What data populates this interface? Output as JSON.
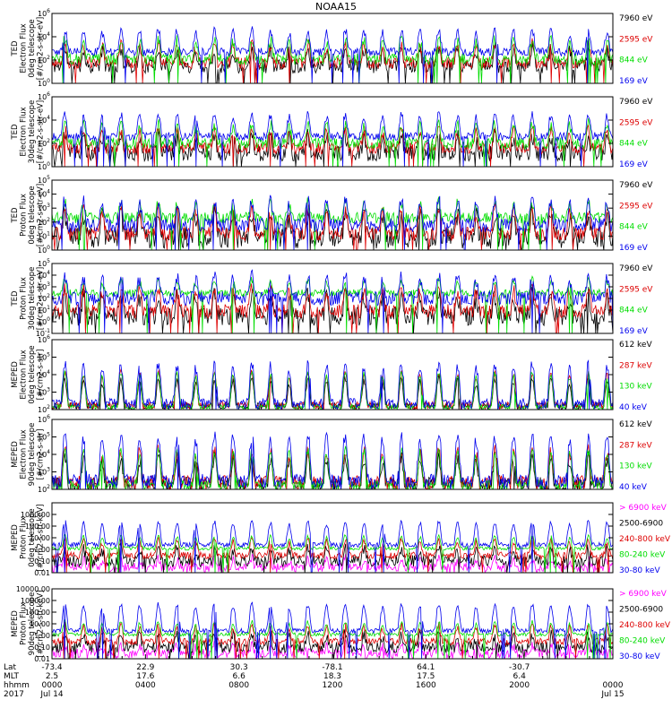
{
  "title": "NOAA15",
  "colors": {
    "black": "#000000",
    "red": "#dd0000",
    "green": "#00dd00",
    "blue": "#0000ee",
    "magenta": "#ff00ff"
  },
  "chart_data": [
    {
      "type": "line",
      "ylabel": [
        "TED",
        "Electron Flux",
        "0deg telescope",
        "[#/cm2-s-str-eV]"
      ],
      "yscale": "log",
      "ylim": [
        1,
        1000000
      ],
      "yticks": [
        {
          "v": 1,
          "label": "10^0"
        },
        {
          "v": 100,
          "label": "10^2"
        },
        {
          "v": 10000,
          "label": "10^4"
        },
        {
          "v": 1000000,
          "label": "10^6"
        }
      ],
      "series": [
        {
          "name": "7960 eV",
          "color": "black",
          "base": 30,
          "noise": 0.6,
          "peak": 25,
          "floor": 1
        },
        {
          "name": "2595 eV",
          "color": "red",
          "base": 60,
          "noise": 0.5,
          "peak": 30,
          "floor": 1
        },
        {
          "name": "844 eV",
          "color": "green",
          "base": 120,
          "noise": 0.5,
          "peak": 40,
          "floor": 1
        },
        {
          "name": "169 eV",
          "color": "blue",
          "base": 500,
          "noise": 0.35,
          "peak": 60,
          "floor": 1
        }
      ]
    },
    {
      "type": "line",
      "ylabel": [
        "TED",
        "Electron Flux",
        "30deg telescope",
        "[#/cm2-s-str-eV]"
      ],
      "yscale": "log",
      "ylim": [
        1,
        1000000
      ],
      "yticks": [
        {
          "v": 1,
          "label": "10^0"
        },
        {
          "v": 100,
          "label": "10^2"
        },
        {
          "v": 10000,
          "label": "10^4"
        },
        {
          "v": 1000000,
          "label": "10^6"
        }
      ],
      "series": [
        {
          "name": "7960 eV",
          "color": "black",
          "base": 15,
          "noise": 0.7,
          "peak": 25,
          "floor": 1
        },
        {
          "name": "2595 eV",
          "color": "red",
          "base": 40,
          "noise": 0.5,
          "peak": 30,
          "floor": 1
        },
        {
          "name": "844 eV",
          "color": "green",
          "base": 100,
          "noise": 0.5,
          "peak": 40,
          "floor": 1
        },
        {
          "name": "169 eV",
          "color": "blue",
          "base": 400,
          "noise": 0.35,
          "peak": 60,
          "floor": 1
        }
      ]
    },
    {
      "type": "line",
      "ylabel": [
        "TED",
        "Proton Flux",
        "0deg telescope",
        "[#/cm2-s-str-eV]"
      ],
      "yscale": "log",
      "ylim": [
        1,
        100000
      ],
      "yticks": [
        {
          "v": 1,
          "label": "10^0"
        },
        {
          "v": 10,
          "label": "10^1"
        },
        {
          "v": 100,
          "label": "10^2"
        },
        {
          "v": 1000,
          "label": "10^3"
        },
        {
          "v": 10000,
          "label": "10^4"
        },
        {
          "v": 100000,
          "label": "10^5"
        }
      ],
      "series": [
        {
          "name": "7960 eV",
          "color": "black",
          "base": 8,
          "noise": 0.8,
          "peak": 40,
          "floor": 1
        },
        {
          "name": "2595 eV",
          "color": "red",
          "base": 15,
          "noise": 0.5,
          "peak": 50,
          "floor": 1
        },
        {
          "name": "844 eV",
          "color": "green",
          "base": 200,
          "noise": 0.4,
          "peak": 10,
          "floor": 1
        },
        {
          "name": "169 eV",
          "color": "blue",
          "base": 60,
          "noise": 0.5,
          "peak": 50,
          "floor": 1
        }
      ]
    },
    {
      "type": "line",
      "ylabel": [
        "TED",
        "Proton Flux",
        "30deg telescope",
        "[#/cm2-s-str-eV]"
      ],
      "yscale": "log",
      "ylim": [
        0.1,
        100000
      ],
      "yticks": [
        {
          "v": 0.1,
          "label": "10^-1"
        },
        {
          "v": 1,
          "label": "10^0"
        },
        {
          "v": 10,
          "label": "10^1"
        },
        {
          "v": 100,
          "label": "10^2"
        },
        {
          "v": 1000,
          "label": "10^3"
        },
        {
          "v": 10000,
          "label": "10^4"
        },
        {
          "v": 100000,
          "label": "10^5"
        }
      ],
      "series": [
        {
          "name": "7960 eV",
          "color": "black",
          "base": 3,
          "noise": 0.8,
          "peak": 50,
          "floor": 0.1
        },
        {
          "name": "2595 eV",
          "color": "red",
          "base": 8,
          "noise": 0.6,
          "peak": 60,
          "floor": 0.1
        },
        {
          "name": "844 eV",
          "color": "green",
          "base": 300,
          "noise": 0.3,
          "peak": 10,
          "floor": 0.1
        },
        {
          "name": "169 eV",
          "color": "blue",
          "base": 100,
          "noise": 0.6,
          "peak": 60,
          "floor": 0.1
        }
      ]
    },
    {
      "type": "line",
      "ylabel": [
        "MEPED",
        "Electron Flux",
        "0deg telescope",
        "[#/cm2-s-str]"
      ],
      "yscale": "log",
      "ylim": [
        100,
        1000000
      ],
      "yticks": [
        {
          "v": 100,
          "label": "10^2"
        },
        {
          "v": 1000,
          "label": "10^3"
        },
        {
          "v": 10000,
          "label": "10^4"
        },
        {
          "v": 100000,
          "label": "10^5"
        },
        {
          "v": 1000000,
          "label": "10^6"
        }
      ],
      "series": [
        {
          "name": "612 keV",
          "color": "black",
          "base": 160,
          "noise": 0.2,
          "peak": 30,
          "floor": 100
        },
        {
          "name": "287 keV",
          "color": "red",
          "base": 180,
          "noise": 0.2,
          "peak": 60,
          "floor": 100
        },
        {
          "name": "130 keV",
          "color": "green",
          "base": 140,
          "noise": 0.15,
          "peak": 80,
          "floor": 100
        },
        {
          "name": "40 keV",
          "color": "blue",
          "base": 220,
          "noise": 0.3,
          "peak": 150,
          "floor": 100
        }
      ]
    },
    {
      "type": "line",
      "ylabel": [
        "MEPED",
        "Electron Flux",
        "90deg telescope",
        "[#/cm2-s-str]"
      ],
      "yscale": "log",
      "ylim": [
        100,
        1000000
      ],
      "yticks": [
        {
          "v": 100,
          "label": "10^2"
        },
        {
          "v": 1000,
          "label": "10^3"
        },
        {
          "v": 10000,
          "label": "10^4"
        },
        {
          "v": 100000,
          "label": "10^5"
        },
        {
          "v": 1000000,
          "label": "10^6"
        }
      ],
      "series": [
        {
          "name": "612 keV",
          "color": "black",
          "base": 200,
          "noise": 0.4,
          "peak": 30,
          "floor": 100
        },
        {
          "name": "287 keV",
          "color": "red",
          "base": 250,
          "noise": 0.4,
          "peak": 60,
          "floor": 100
        },
        {
          "name": "130 keV",
          "color": "green",
          "base": 180,
          "noise": 0.3,
          "peak": 80,
          "floor": 100
        },
        {
          "name": "40 keV",
          "color": "blue",
          "base": 300,
          "noise": 0.4,
          "peak": 300,
          "floor": 100
        }
      ]
    },
    {
      "type": "line",
      "ylabel": [
        "MEPED",
        "Proton Flux",
        "0deg telescope",
        "[#/cm2-s-str-keV]"
      ],
      "yscale": "log",
      "ylim": [
        0.01,
        10000
      ],
      "yticks": [
        {
          "v": 0.01,
          "label": "0.01"
        },
        {
          "v": 0.1,
          "label": "0.10"
        },
        {
          "v": 1,
          "label": "1.00"
        },
        {
          "v": 10,
          "label": "10.00"
        },
        {
          "v": 100,
          "label": "100.00"
        },
        {
          "v": 1000,
          "label": "1000.00"
        }
      ],
      "series": [
        {
          "name": "> 6900 keV",
          "color": "magenta",
          "base": 0.03,
          "noise": 0.4,
          "peak": 4,
          "floor": 0.01
        },
        {
          "name": "2500-6900",
          "color": "black",
          "base": 0.1,
          "noise": 0.5,
          "peak": 10,
          "floor": 0.01
        },
        {
          "name": "240-800 keV",
          "color": "red",
          "base": 0.3,
          "noise": 0.3,
          "peak": 20,
          "floor": 0.01
        },
        {
          "name": "80-240 keV",
          "color": "green",
          "base": 1.2,
          "noise": 0.15,
          "peak": 10,
          "floor": 0.01
        },
        {
          "name": "30-80 keV",
          "color": "blue",
          "base": 2.5,
          "noise": 0.2,
          "peak": 80,
          "floor": 0.01
        }
      ]
    },
    {
      "type": "line",
      "ylabel": [
        "MEPED",
        "Proton Flux",
        "90deg telescope",
        "[#/cm2-s-str-keV]"
      ],
      "yscale": "log",
      "ylim": [
        0.01,
        10000
      ],
      "yticks": [
        {
          "v": 0.01,
          "label": "0.01"
        },
        {
          "v": 0.1,
          "label": "0.10"
        },
        {
          "v": 1,
          "label": "1.00"
        },
        {
          "v": 10,
          "label": "10.00"
        },
        {
          "v": 100,
          "label": "100.00"
        },
        {
          "v": 1000,
          "label": "1000.00"
        },
        {
          "v": 10000,
          "label": "10000.00"
        }
      ],
      "series": [
        {
          "name": "> 6900 keV",
          "color": "magenta",
          "base": 0.03,
          "noise": 0.4,
          "peak": 4,
          "floor": 0.01
        },
        {
          "name": "2500-6900",
          "color": "black",
          "base": 0.1,
          "noise": 0.5,
          "peak": 10,
          "floor": 0.01
        },
        {
          "name": "240-800 keV",
          "color": "red",
          "base": 0.3,
          "noise": 0.3,
          "peak": 20,
          "floor": 0.01
        },
        {
          "name": "80-240 keV",
          "color": "green",
          "base": 1.2,
          "noise": 0.15,
          "peak": 10,
          "floor": 0.01
        },
        {
          "name": "30-80 keV",
          "color": "blue",
          "base": 2.5,
          "noise": 0.2,
          "peak": 150,
          "floor": 0.01
        }
      ]
    }
  ],
  "xaxis": {
    "row_labels": [
      "Lat",
      "MLT",
      "hhmm",
      "2017"
    ],
    "ticks": [
      {
        "t": 0,
        "lat": "-73.4",
        "mlt": "2.5",
        "hhmm": "0000",
        "date": "Jul 14"
      },
      {
        "t": 4,
        "lat": "22.9",
        "mlt": "17.6",
        "hhmm": "0400",
        "date": ""
      },
      {
        "t": 8,
        "lat": "30.3",
        "mlt": "6.6",
        "hhmm": "0800",
        "date": ""
      },
      {
        "t": 12,
        "lat": "-78.1",
        "mlt": "18.3",
        "hhmm": "1200",
        "date": ""
      },
      {
        "t": 16,
        "lat": "64.1",
        "mlt": "17.5",
        "hhmm": "1600",
        "date": ""
      },
      {
        "t": 20,
        "lat": "-30.7",
        "mlt": "6.4",
        "hhmm": "2000",
        "date": ""
      },
      {
        "t": 24,
        "lat": "",
        "mlt": "",
        "hhmm": "0000",
        "date": "Jul 15"
      }
    ]
  }
}
